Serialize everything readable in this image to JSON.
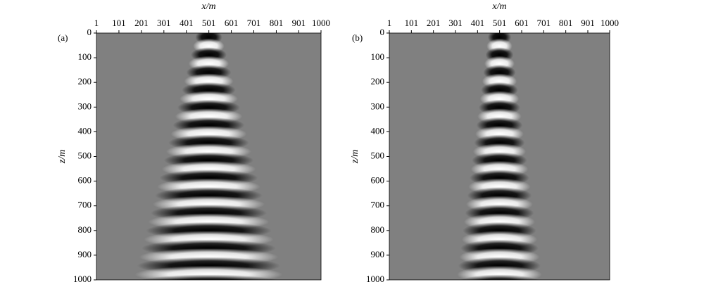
{
  "chart_data": [
    {
      "type": "heatmap",
      "panel_label": "(a)",
      "xlabel": "x/m",
      "ylabel": "z/m",
      "xlim": [
        1,
        1000
      ],
      "ylim": [
        0,
        1000
      ],
      "xticks": [
        1,
        101,
        201,
        301,
        401,
        501,
        601,
        701,
        801,
        901,
        1000
      ],
      "yticks": [
        0,
        100,
        200,
        300,
        400,
        500,
        600,
        700,
        800,
        900,
        1000
      ]
    },
    {
      "type": "heatmap",
      "panel_label": "(b)",
      "xlabel": "x/m",
      "ylabel": "z/m",
      "xlim": [
        1,
        1000
      ],
      "ylim": [
        0,
        1000
      ],
      "xticks": [
        1,
        101,
        201,
        301,
        401,
        501,
        601,
        701,
        801,
        901,
        1000
      ],
      "yticks": [
        0,
        100,
        200,
        300,
        400,
        500,
        600,
        700,
        800,
        900,
        1000
      ]
    }
  ]
}
